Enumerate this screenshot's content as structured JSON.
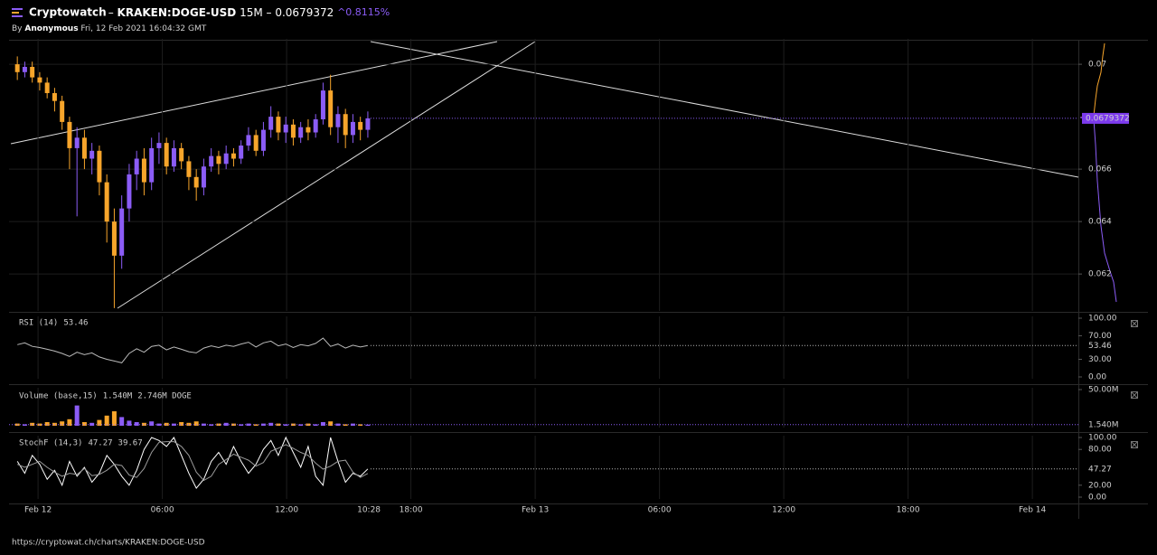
{
  "header": {
    "app": "Cryptowatch",
    "separator": "–",
    "symbol": "KRAKEN:DOGE-USD",
    "interval": "15M",
    "price": "0.0679372",
    "change": "^0.8115%",
    "by": "By",
    "author": "Anonymous",
    "date": "Fri, 12 Feb 2021 16:04:32 GMT"
  },
  "footer": {
    "url": "https://cryptowat.ch/charts/KRAKEN:DOGE-USD"
  },
  "chart_data": [
    {
      "type": "candlestick",
      "up_color": "#8b5cf6",
      "down_color": "#f7a52b",
      "grid": true,
      "xlim": [
        -1.4,
        50.22
      ],
      "xticks": [
        {
          "value": 0,
          "label": "Feb 12"
        },
        {
          "value": 6,
          "label": "06:00"
        },
        {
          "value": 12,
          "label": "12:00"
        },
        {
          "value": 18,
          "label": "18:00"
        },
        {
          "value": 24,
          "label": "Feb 13"
        },
        {
          "value": 30,
          "label": "06:00"
        },
        {
          "value": 36,
          "label": "12:00"
        },
        {
          "value": 42,
          "label": "18:00"
        },
        {
          "value": 48,
          "label": "Feb 14"
        }
      ],
      "x_current": {
        "value": 15.97,
        "label": "10:28"
      },
      "ylim": [
        0.06066,
        0.0709
      ],
      "yticks": [
        0.062,
        0.064,
        0.066,
        0.07
      ],
      "last_price": 0.0679372,
      "x": [
        -1.0,
        -0.64,
        -0.28,
        0.08,
        0.44,
        0.8,
        1.16,
        1.52,
        1.88,
        2.24,
        2.6,
        2.96,
        3.32,
        3.68,
        4.04,
        4.4,
        4.76,
        5.12,
        5.48,
        5.84,
        6.2,
        6.56,
        6.92,
        7.28,
        7.64,
        8.0,
        8.36,
        8.72,
        9.08,
        9.44,
        9.8,
        10.16,
        10.52,
        10.88,
        11.24,
        11.6,
        11.96,
        12.32,
        12.68,
        13.04,
        13.4,
        13.76,
        14.12,
        14.48,
        14.84,
        15.2,
        15.56,
        15.92
      ],
      "open": [
        0.07,
        0.0697,
        0.0699,
        0.0695,
        0.0693,
        0.0689,
        0.0686,
        0.0678,
        0.0668,
        0.0672,
        0.0664,
        0.0667,
        0.0655,
        0.064,
        0.0627,
        0.0645,
        0.0658,
        0.0664,
        0.0655,
        0.0668,
        0.067,
        0.0661,
        0.0668,
        0.0663,
        0.0657,
        0.0653,
        0.0661,
        0.0665,
        0.0662,
        0.0666,
        0.0664,
        0.0669,
        0.0673,
        0.0667,
        0.0675,
        0.068,
        0.0674,
        0.0677,
        0.0672,
        0.0676,
        0.0674,
        0.0679,
        0.069,
        0.0676,
        0.0681,
        0.0673,
        0.0678,
        0.0675
      ],
      "high": [
        0.0703,
        0.0701,
        0.0701,
        0.0697,
        0.0695,
        0.0691,
        0.0688,
        0.068,
        0.0676,
        0.0675,
        0.067,
        0.0669,
        0.0658,
        0.0645,
        0.065,
        0.0662,
        0.0667,
        0.0668,
        0.0672,
        0.0674,
        0.0672,
        0.0671,
        0.067,
        0.0665,
        0.066,
        0.0664,
        0.0668,
        0.0667,
        0.0669,
        0.0668,
        0.0671,
        0.0676,
        0.0675,
        0.0678,
        0.0684,
        0.0682,
        0.068,
        0.0679,
        0.0678,
        0.0679,
        0.0681,
        0.0693,
        0.0696,
        0.0684,
        0.0683,
        0.0681,
        0.068,
        0.0682
      ],
      "low": [
        0.0694,
        0.0695,
        0.0693,
        0.069,
        0.0687,
        0.0682,
        0.0675,
        0.066,
        0.0642,
        0.066,
        0.0658,
        0.065,
        0.0632,
        0.0607,
        0.0622,
        0.064,
        0.0652,
        0.065,
        0.0652,
        0.0662,
        0.0658,
        0.0659,
        0.066,
        0.0652,
        0.0648,
        0.065,
        0.0659,
        0.0658,
        0.066,
        0.0661,
        0.0662,
        0.0667,
        0.0665,
        0.0665,
        0.0672,
        0.0671,
        0.067,
        0.0669,
        0.067,
        0.0671,
        0.0672,
        0.0677,
        0.0673,
        0.067,
        0.0668,
        0.067,
        0.0671,
        0.0672
      ],
      "close": [
        0.0697,
        0.0699,
        0.0695,
        0.0693,
        0.0689,
        0.0686,
        0.0678,
        0.0668,
        0.0672,
        0.0664,
        0.0667,
        0.0655,
        0.064,
        0.0627,
        0.0645,
        0.0658,
        0.0664,
        0.0655,
        0.0668,
        0.067,
        0.0661,
        0.0668,
        0.0663,
        0.0657,
        0.0653,
        0.0661,
        0.0665,
        0.0662,
        0.0666,
        0.0664,
        0.0669,
        0.0673,
        0.0667,
        0.0675,
        0.068,
        0.0674,
        0.0677,
        0.0672,
        0.0676,
        0.0674,
        0.0679,
        0.069,
        0.0676,
        0.0681,
        0.0673,
        0.0678,
        0.0675,
        0.0679372
      ]
    },
    {
      "type": "line",
      "title": "RSI (14)",
      "readouts": [
        "53.46"
      ],
      "color": "#bbbbbb",
      "ylim": [
        0,
        100
      ],
      "yticks": [
        {
          "value": 100,
          "label": "100.00"
        },
        {
          "value": 70,
          "label": "70.00"
        },
        {
          "value": 30,
          "label": "30.00"
        },
        {
          "value": 0,
          "label": "0.00"
        }
      ],
      "last_value": 53.46,
      "values": [
        55,
        58,
        52,
        50,
        47,
        44,
        40,
        35,
        42,
        38,
        41,
        34,
        30,
        27,
        24,
        40,
        48,
        42,
        52,
        54,
        46,
        51,
        47,
        43,
        41,
        49,
        53,
        50,
        54,
        52,
        56,
        59,
        51,
        58,
        61,
        53,
        56,
        50,
        55,
        53,
        57,
        66,
        52,
        56,
        49,
        54,
        51,
        53.46
      ]
    },
    {
      "type": "bar",
      "title": "Volume (base,15)",
      "readouts": [
        "1.540M",
        "2.746M DOGE"
      ],
      "ylim": [
        0,
        50
      ],
      "yticks": [
        {
          "value": 50,
          "label": "50.00M"
        }
      ],
      "last_value": {
        "value": 1.54,
        "label": "1.540M"
      },
      "values": [
        3,
        2,
        4,
        3,
        5,
        4,
        6,
        9,
        28,
        5,
        4,
        8,
        14,
        20,
        12,
        7,
        5,
        4,
        6,
        3,
        4,
        3,
        5,
        4,
        6,
        3,
        2,
        3,
        4,
        3,
        2,
        3,
        2,
        3,
        4,
        3,
        2,
        3,
        2,
        3,
        2,
        5,
        6,
        3,
        2,
        3,
        2,
        1.54
      ]
    },
    {
      "type": "line",
      "title": "StochF (14,3)",
      "readouts": [
        "47.27",
        "39.67"
      ],
      "ylim": [
        0,
        100
      ],
      "yticks": [
        {
          "value": 100,
          "label": "100.00"
        },
        {
          "value": 80,
          "label": "80.00"
        },
        {
          "value": 20,
          "label": "20.00"
        },
        {
          "value": 0,
          "label": "0.00"
        }
      ],
      "last_value": 47.27,
      "series": [
        {
          "color": "#ffffff",
          "values": [
            60,
            40,
            70,
            55,
            30,
            45,
            20,
            60,
            35,
            50,
            25,
            40,
            70,
            55,
            35,
            20,
            45,
            80,
            100,
            95,
            85,
            100,
            70,
            40,
            15,
            30,
            60,
            75,
            55,
            85,
            60,
            40,
            55,
            80,
            95,
            70,
            100,
            75,
            50,
            85,
            35,
            20,
            100,
            60,
            25,
            40,
            35,
            47.27
          ]
        },
        {
          "color": "#9a9a9a",
          "values": [
            55,
            50,
            55,
            60,
            50,
            42,
            35,
            40,
            38,
            48,
            36,
            38,
            45,
            55,
            53,
            37,
            33,
            48,
            75,
            92,
            93,
            93,
            85,
            70,
            42,
            28,
            35,
            55,
            63,
            72,
            67,
            62,
            52,
            58,
            77,
            82,
            88,
            82,
            75,
            70,
            57,
            47,
            52,
            60,
            62,
            42,
            33,
            39.67
          ]
        }
      ]
    }
  ]
}
